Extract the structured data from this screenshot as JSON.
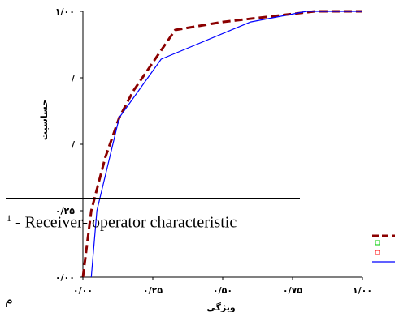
{
  "chart_data": {
    "type": "line",
    "xlabel": "ویژگی",
    "ylabel": "حساسیت",
    "xlim": [
      0,
      1
    ],
    "ylim": [
      0,
      1
    ],
    "x_ticks": [
      {
        "value": 0,
        "label": "۰/۰۰"
      },
      {
        "value": 0.25,
        "label": "۰/۲۵"
      },
      {
        "value": 0.5,
        "label": "۰/۵۰"
      },
      {
        "value": 0.75,
        "label": "۰/۷۵"
      },
      {
        "value": 1,
        "label": "۱/۰۰"
      }
    ],
    "y_ticks": [
      {
        "value": 0,
        "label": "۰/۰۰"
      },
      {
        "value": 0.25,
        "label": "۰/۲۵"
      },
      {
        "value": 0.5,
        "label": "/"
      },
      {
        "value": 0.75,
        "label": "/"
      },
      {
        "value": 1,
        "label": "۱/۰۰"
      }
    ],
    "series": [
      {
        "color": "#8b0000",
        "style": "dashed",
        "points": [
          [
            0,
            0
          ],
          [
            0.03,
            0.25
          ],
          [
            0.08,
            0.45
          ],
          [
            0.13,
            0.6
          ],
          [
            0.18,
            0.7
          ],
          [
            0.33,
            0.93
          ],
          [
            0.5,
            0.96
          ],
          [
            0.83,
            1.0
          ],
          [
            1.0,
            1.0
          ]
        ],
        "x": [
          0,
          0.03,
          0.08,
          0.13,
          0.18,
          0.33,
          0.5,
          0.83,
          1.0
        ],
        "y": [
          0,
          0.25,
          0.45,
          0.6,
          0.7,
          0.93,
          0.96,
          1.0,
          1.0
        ]
      },
      {
        "color": "#0000ff",
        "style": "solid",
        "points": [
          [
            0.03,
            0
          ],
          [
            0.05,
            0.25
          ],
          [
            0.13,
            0.6
          ],
          [
            0.28,
            0.82
          ],
          [
            0.6,
            0.96
          ],
          [
            0.8,
            1.0
          ],
          [
            1.0,
            1.0
          ]
        ],
        "x": [
          0.03,
          0.05,
          0.13,
          0.28,
          0.6,
          0.8,
          1.0
        ],
        "y": [
          0,
          0.25,
          0.6,
          0.82,
          0.96,
          1.0,
          1.0
        ]
      }
    ],
    "grid": false
  },
  "page": {
    "footnote_number": "1",
    "footnote_text": " - Receiver- operator characteristic",
    "corner_letter": "م"
  },
  "legend": {
    "colors": [
      "#8b0000",
      "#00cc00",
      "#ff0000",
      "#0000ff"
    ]
  }
}
